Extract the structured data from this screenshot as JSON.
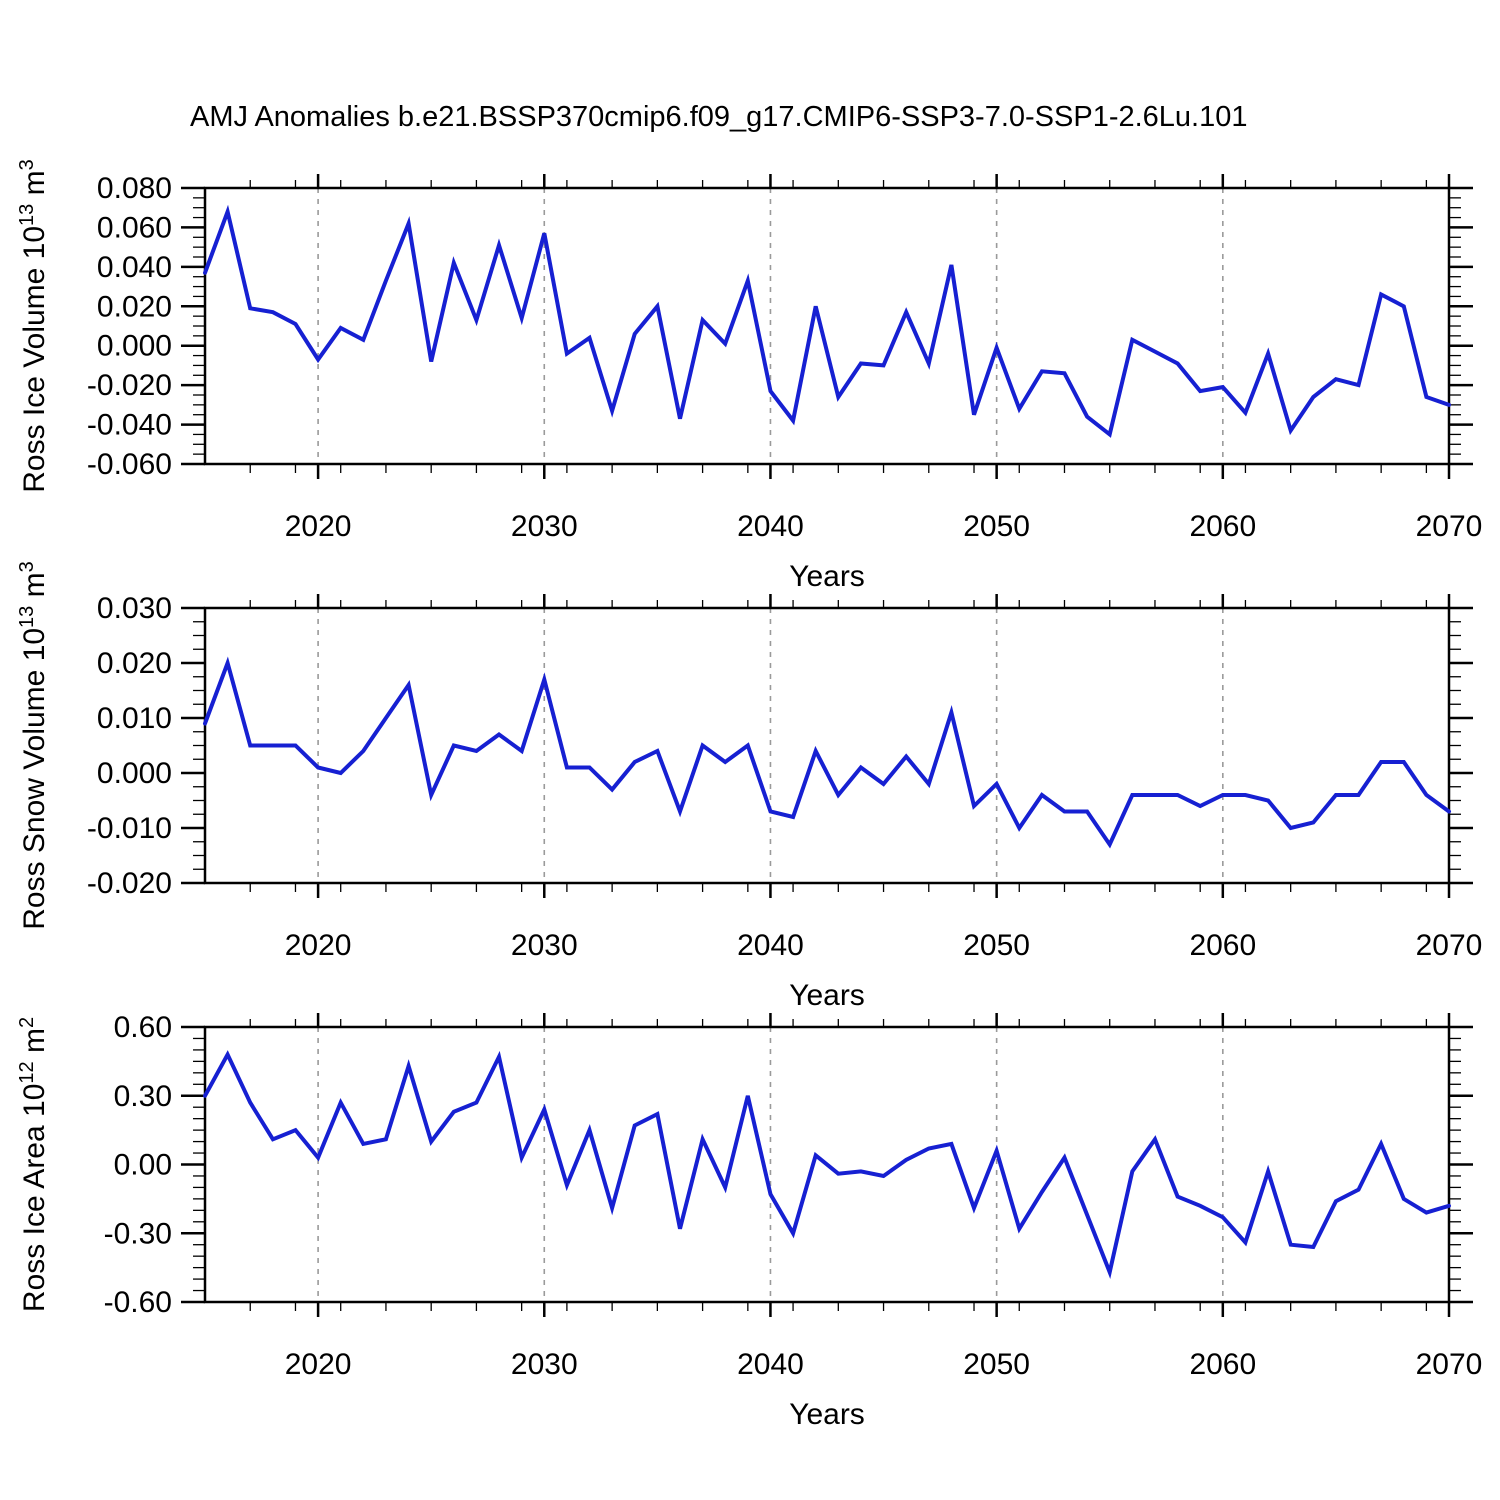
{
  "title": "AMJ Anomalies b.e21.BSSP370cmip6.f09_g17.CMIP6-SSP3-7.0-SSP1-2.6Lu.101",
  "colors": {
    "line": "#1620d2",
    "grid": "#9a9a9a",
    "axis": "#000000"
  },
  "x_axis": {
    "label": "Years",
    "range": [
      2015,
      2070
    ],
    "ticks": [
      2020,
      2030,
      2040,
      2050,
      2060,
      2070
    ],
    "tick_labels": [
      "2020",
      "2030",
      "2040",
      "2050",
      "2060",
      "2070"
    ],
    "minor_step_years": 2,
    "grid_years": [
      2020,
      2030,
      2040,
      2050,
      2060
    ]
  },
  "years": [
    2015,
    2016,
    2017,
    2018,
    2019,
    2020,
    2021,
    2022,
    2023,
    2024,
    2025,
    2026,
    2027,
    2028,
    2029,
    2030,
    2031,
    2032,
    2033,
    2034,
    2035,
    2036,
    2037,
    2038,
    2039,
    2040,
    2041,
    2042,
    2043,
    2044,
    2045,
    2046,
    2047,
    2048,
    2049,
    2050,
    2051,
    2052,
    2053,
    2054,
    2055,
    2056,
    2057,
    2058,
    2059,
    2060,
    2061,
    2062,
    2063,
    2064,
    2065,
    2066,
    2067,
    2068,
    2069,
    2070
  ],
  "chart_data": [
    {
      "type": "line",
      "name": "Ross Ice Volume",
      "ylabel": "Ross Ice Volume 10^13 m^3",
      "ylabel_segments": [
        {
          "t": "Ross Ice Volume 10"
        },
        {
          "t": "13",
          "sup": true
        },
        {
          "t": " m"
        },
        {
          "t": "3",
          "sup": true
        }
      ],
      "xlabel": "Years",
      "ylim": [
        -0.06,
        0.08
      ],
      "yticks": [
        0.08,
        0.06,
        0.04,
        0.02,
        0.0,
        -0.02,
        -0.04,
        -0.06
      ],
      "ytick_labels": [
        "0.080",
        "0.060",
        "0.040",
        "0.020",
        "0.000",
        "-0.020",
        "-0.040",
        "-0.060"
      ],
      "y_minor_step": 0.005,
      "grid": "vertical-dashed-decades",
      "legend": "none",
      "values": [
        0.037,
        0.068,
        0.019,
        0.017,
        0.011,
        -0.007,
        0.009,
        0.003,
        0.033,
        0.062,
        -0.008,
        0.042,
        0.013,
        0.051,
        0.014,
        0.057,
        -0.004,
        0.004,
        -0.033,
        0.006,
        0.02,
        -0.037,
        0.013,
        0.001,
        0.033,
        -0.023,
        -0.038,
        0.02,
        -0.026,
        -0.009,
        -0.01,
        0.017,
        -0.009,
        0.041,
        -0.035,
        -0.001,
        -0.032,
        -0.013,
        -0.014,
        -0.036,
        -0.045,
        0.003,
        -0.003,
        -0.009,
        -0.023,
        -0.021,
        -0.034,
        -0.004,
        -0.043,
        -0.026,
        -0.017,
        -0.02,
        0.026,
        0.02,
        -0.026,
        -0.03
      ]
    },
    {
      "type": "line",
      "name": "Ross Snow Volume",
      "ylabel": "Ross Snow Volume 10^13 m^3",
      "ylabel_segments": [
        {
          "t": "Ross Snow Volume 10"
        },
        {
          "t": "13",
          "sup": true
        },
        {
          "t": " m"
        },
        {
          "t": "3",
          "sup": true
        }
      ],
      "xlabel": "Years",
      "ylim": [
        -0.02,
        0.03
      ],
      "yticks": [
        0.03,
        0.02,
        0.01,
        0.0,
        -0.01,
        -0.02
      ],
      "ytick_labels": [
        "0.030",
        "0.020",
        "0.010",
        "0.000",
        "-0.010",
        "-0.020"
      ],
      "y_minor_step": 0.0025,
      "grid": "vertical-dashed-decades",
      "legend": "none",
      "values": [
        0.009,
        0.02,
        0.005,
        0.005,
        0.005,
        0.001,
        0.0,
        0.004,
        0.01,
        0.016,
        -0.004,
        0.005,
        0.004,
        0.007,
        0.004,
        0.017,
        0.001,
        0.001,
        -0.003,
        0.002,
        0.004,
        -0.007,
        0.005,
        0.002,
        0.005,
        -0.007,
        -0.008,
        0.004,
        -0.004,
        0.001,
        -0.002,
        0.003,
        -0.002,
        0.011,
        -0.006,
        -0.002,
        -0.01,
        -0.004,
        -0.007,
        -0.007,
        -0.013,
        -0.004,
        -0.004,
        -0.004,
        -0.006,
        -0.004,
        -0.004,
        -0.005,
        -0.01,
        -0.009,
        -0.004,
        -0.004,
        0.002,
        0.002,
        -0.004,
        -0.007
      ]
    },
    {
      "type": "line",
      "name": "Ross Ice Area",
      "ylabel": "Ross Ice Area 10^12 m^2",
      "ylabel_segments": [
        {
          "t": "Ross Ice Area 10"
        },
        {
          "t": "12",
          "sup": true
        },
        {
          "t": " m"
        },
        {
          "t": "2",
          "sup": true
        }
      ],
      "xlabel": "Years",
      "ylim": [
        -0.6,
        0.6
      ],
      "yticks": [
        0.6,
        0.3,
        0.0,
        -0.3,
        -0.6
      ],
      "ytick_labels": [
        "0.60",
        "0.30",
        "0.00",
        "-0.30",
        "-0.60"
      ],
      "y_minor_step": 0.05,
      "grid": "vertical-dashed-decades",
      "legend": "none",
      "values": [
        0.3,
        0.48,
        0.27,
        0.11,
        0.15,
        0.03,
        0.27,
        0.09,
        0.11,
        0.43,
        0.1,
        0.23,
        0.27,
        0.47,
        0.03,
        0.24,
        -0.09,
        0.15,
        -0.19,
        0.17,
        0.22,
        -0.28,
        0.11,
        -0.1,
        0.3,
        -0.13,
        -0.3,
        0.04,
        -0.04,
        -0.03,
        -0.05,
        0.02,
        0.07,
        0.09,
        -0.19,
        0.06,
        -0.28,
        -0.12,
        0.03,
        -0.22,
        -0.47,
        -0.03,
        0.11,
        -0.14,
        -0.18,
        -0.23,
        -0.34,
        -0.03,
        -0.35,
        -0.36,
        -0.16,
        -0.11,
        0.09,
        -0.15,
        -0.21,
        -0.18
      ]
    }
  ]
}
